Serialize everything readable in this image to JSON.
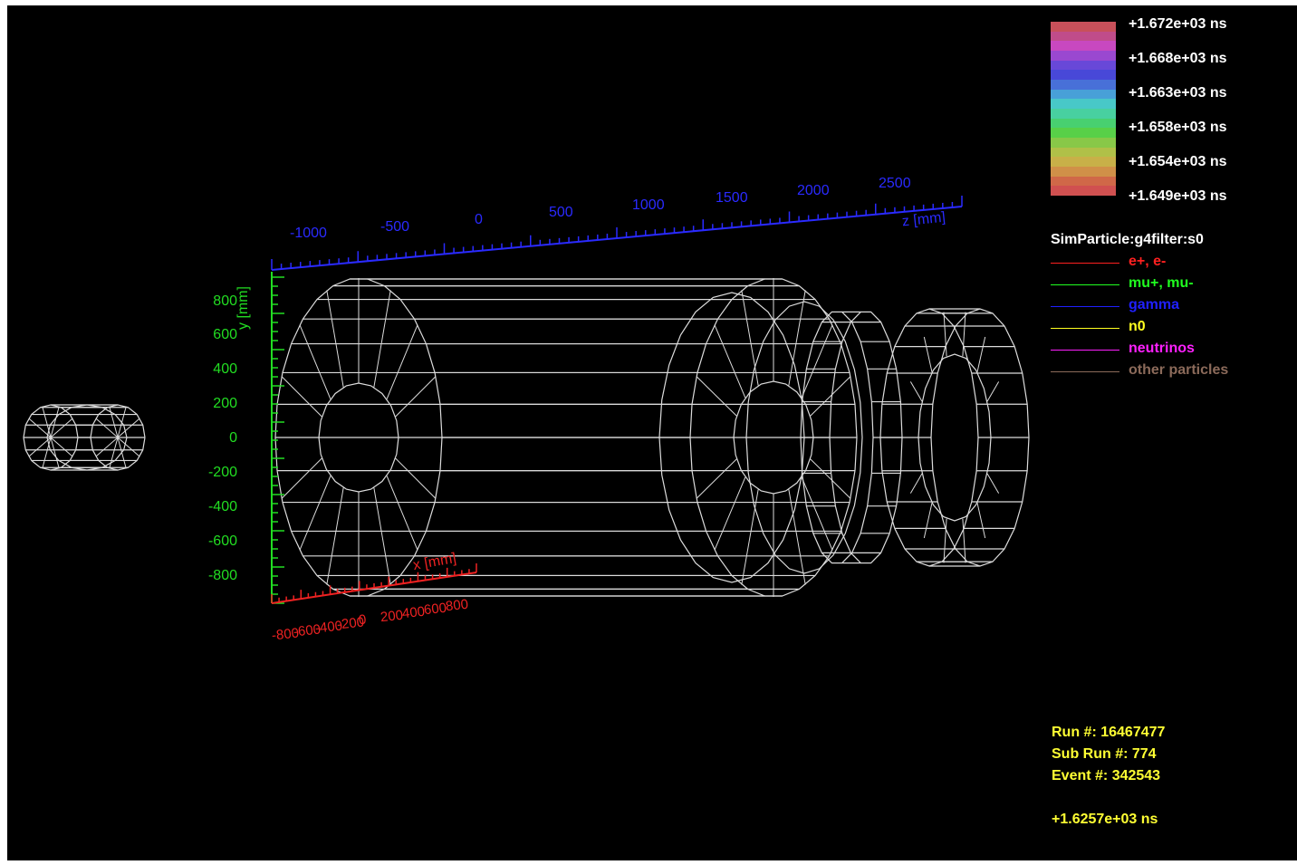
{
  "color_scale": {
    "labels": [
      "+1.672e+03 ns",
      "+1.668e+03 ns",
      "+1.663e+03 ns",
      "+1.658e+03 ns",
      "+1.654e+03 ns",
      "+1.649e+03 ns"
    ],
    "colors": [
      "#c8505a",
      "#c04c8a",
      "#c848c0",
      "#9a48d0",
      "#6848d8",
      "#4848d8",
      "#4870d8",
      "#48a0d8",
      "#48c8c8",
      "#48d0a0",
      "#48d070",
      "#58d048",
      "#88c848",
      "#b0c048",
      "#c8b048",
      "#d09048",
      "#d06848",
      "#d05050"
    ]
  },
  "legend": {
    "title": "SimParticle:g4filter:s0",
    "items": [
      {
        "label": "e+, e-",
        "color": "#ff2020"
      },
      {
        "label": "mu+, mu-",
        "color": "#20ff20"
      },
      {
        "label": "gamma",
        "color": "#2020ff"
      },
      {
        "label": "n0",
        "color": "#ffff20"
      },
      {
        "label": "neutrinos",
        "color": "#ff20ff"
      },
      {
        "label": "other particles",
        "color": "#8b6a5a"
      }
    ]
  },
  "axes": {
    "z": {
      "label": "z [mm]",
      "ticks": [
        "-1000",
        "-500",
        "0",
        "500",
        "1000",
        "1500",
        "2000",
        "2500"
      ],
      "color": "#2a2aff"
    },
    "y": {
      "label": "y [mm]",
      "ticks": [
        "800",
        "600",
        "400",
        "200",
        "0",
        "-200",
        "-400",
        "-600",
        "-800"
      ],
      "color": "#22dd22"
    },
    "x": {
      "label": "x [mm]",
      "ticks": [
        "-800",
        "-600",
        "-400",
        "-200",
        "0",
        "200",
        "400",
        "600",
        "800"
      ],
      "color": "#ee2222"
    }
  },
  "event_info": {
    "run": "Run #: 16467477",
    "subrun": "Sub Run #: 774",
    "event": "Event #: 342543",
    "time": "+1.6257e+03 ns"
  }
}
